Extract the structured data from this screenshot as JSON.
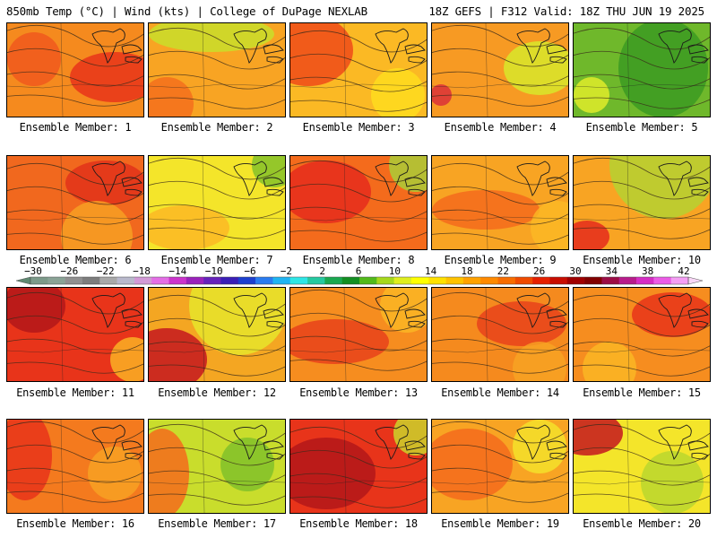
{
  "header": {
    "left": "850mb Temp (°C) | Wind (kts) | College of DuPage NEXLAB",
    "right": "18Z GEFS | F312 Valid: 18Z THU JUN 19 2025"
  },
  "colorbar": {
    "ticks": [
      "−30",
      "−26",
      "−22",
      "−18",
      "−14",
      "−10",
      "−6",
      "−2",
      "2",
      "6",
      "10",
      "14",
      "18",
      "22",
      "26",
      "30",
      "34",
      "38",
      "42"
    ],
    "colors": [
      "#7c9a8a",
      "#8aa396",
      "#909090",
      "#7d7d7d",
      "#a9a9a9",
      "#b9b9cc",
      "#d29ad6",
      "#e46ee6",
      "#cc33cc",
      "#9a22bb",
      "#6622bb",
      "#3a1fb6",
      "#1d40cf",
      "#2a7cf0",
      "#20b4f2",
      "#2ee6e6",
      "#25c9a0",
      "#19a850",
      "#138f22",
      "#52ba1b",
      "#a6d91c",
      "#dfee1e",
      "#ffff00",
      "#ffe100",
      "#ffc300",
      "#ffa200",
      "#ff8a00",
      "#f86d00",
      "#f04b00",
      "#e62000",
      "#c80d00",
      "#a00000",
      "#820000",
      "#9c0c46",
      "#b81c8c",
      "#d62dc4",
      "#ec5be6",
      "#f59ef4"
    ]
  },
  "members": [
    {
      "label": "Ensemble Member: 1"
    },
    {
      "label": "Ensemble Member: 2"
    },
    {
      "label": "Ensemble Member: 3"
    },
    {
      "label": "Ensemble Member: 4"
    },
    {
      "label": "Ensemble Member: 5"
    },
    {
      "label": "Ensemble Member: 6"
    },
    {
      "label": "Ensemble Member: 7"
    },
    {
      "label": "Ensemble Member: 8"
    },
    {
      "label": "Ensemble Member: 9"
    },
    {
      "label": "Ensemble Member: 10"
    },
    {
      "label": "Ensemble Member: 11"
    },
    {
      "label": "Ensemble Member: 12"
    },
    {
      "label": "Ensemble Member: 13"
    },
    {
      "label": "Ensemble Member: 14"
    },
    {
      "label": "Ensemble Member: 15"
    },
    {
      "label": "Ensemble Member: 16"
    },
    {
      "label": "Ensemble Member: 17"
    },
    {
      "label": "Ensemble Member: 18"
    },
    {
      "label": "Ensemble Member: 19"
    },
    {
      "label": "Ensemble Member: 20"
    }
  ]
}
